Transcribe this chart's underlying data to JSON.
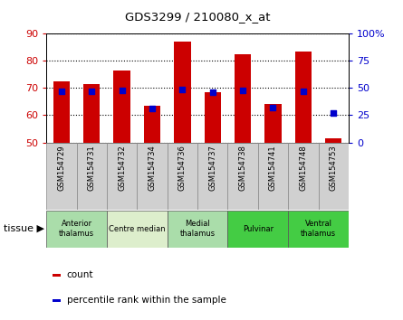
{
  "title": "GDS3299 / 210080_x_at",
  "samples": [
    "GSM154729",
    "GSM154731",
    "GSM154732",
    "GSM154734",
    "GSM154736",
    "GSM154737",
    "GSM154738",
    "GSM154741",
    "GSM154748",
    "GSM154753"
  ],
  "count_values": [
    72.5,
    71.5,
    76.5,
    63.5,
    87.0,
    68.5,
    82.5,
    64.0,
    83.5,
    51.5
  ],
  "percentile_values": [
    47,
    47,
    48,
    31,
    49,
    46,
    48,
    32,
    47,
    27
  ],
  "ylim_left": [
    50,
    90
  ],
  "ylim_right": [
    0,
    100
  ],
  "yticks_left": [
    50,
    60,
    70,
    80,
    90
  ],
  "yticks_right": [
    0,
    25,
    50,
    75,
    100
  ],
  "yticklabels_right": [
    "0",
    "25",
    "50",
    "75",
    "100%"
  ],
  "bar_color": "#cc0000",
  "dot_color": "#0000cc",
  "tick_label_color_left": "#cc0000",
  "tick_label_color_right": "#0000cc",
  "tissue_groups": [
    {
      "label": "Anterior\nthalamus",
      "samples": [
        "GSM154729",
        "GSM154731"
      ],
      "color": "#aaddaa"
    },
    {
      "label": "Centre median",
      "samples": [
        "GSM154732",
        "GSM154734"
      ],
      "color": "#ddeecc"
    },
    {
      "label": "Medial\nthalamus",
      "samples": [
        "GSM154736",
        "GSM154737"
      ],
      "color": "#aaddaa"
    },
    {
      "label": "Pulvinar",
      "samples": [
        "GSM154738",
        "GSM154741"
      ],
      "color": "#44cc44"
    },
    {
      "label": "Ventral\nthalamus",
      "samples": [
        "GSM154748",
        "GSM154753"
      ],
      "color": "#44cc44"
    }
  ],
  "legend_count_label": "count",
  "legend_pct_label": "percentile rank within the sample",
  "tissue_label": "tissue",
  "bar_width": 0.55
}
